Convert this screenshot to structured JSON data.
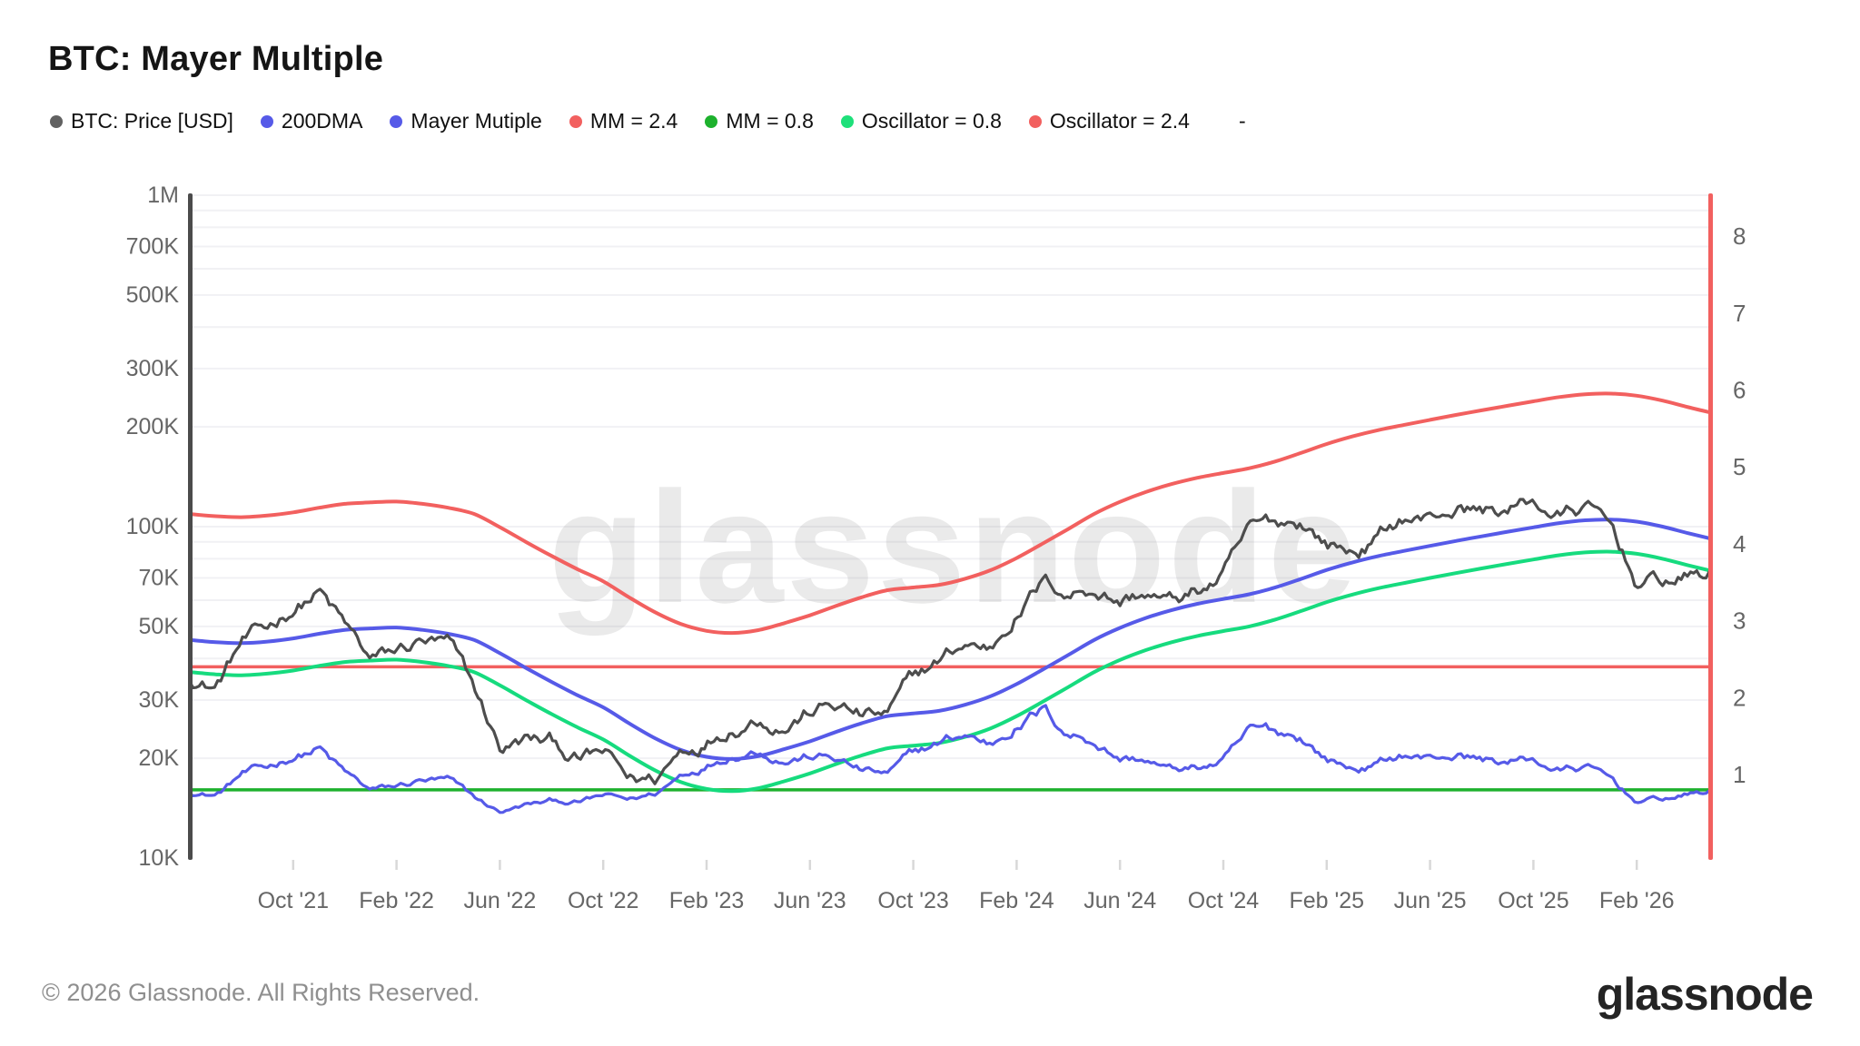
{
  "title": "BTC: Mayer Multiple",
  "watermark": "glassnode",
  "footer": {
    "copyright": "© 2026 Glassnode. All Rights Reserved.",
    "brand": "glassnode"
  },
  "legend": [
    {
      "label": "BTC: Price [USD]",
      "color": "#616161"
    },
    {
      "label": "200DMA",
      "color": "#565AE8"
    },
    {
      "label": "Mayer Mutiple",
      "color": "#565AE8"
    },
    {
      "label": "MM = 2.4",
      "color": "#F2605F"
    },
    {
      "label": "MM = 0.8",
      "color": "#1DB12D"
    },
    {
      "label": "Oscillator = 0.8",
      "color": "#1EE07A"
    },
    {
      "label": "Oscillator = 2.4",
      "color": "#F2605F"
    },
    {
      "label": "-",
      "color": null
    }
  ],
  "chart_data": {
    "type": "line",
    "title": "BTC: Mayer Multiple",
    "x_monthly_start": "2021-06",
    "x_months_total": 60,
    "x_tick_labels": [
      "Oct '21",
      "Feb '22",
      "Jun '22",
      "Oct '22",
      "Feb '23",
      "Jun '23",
      "Oct '23",
      "Feb '24",
      "Jun '24",
      "Oct '24",
      "Feb '25",
      "Jun '25",
      "Oct '25",
      "Feb '26"
    ],
    "left_axis": {
      "scale": "log",
      "unit": "USD",
      "range_usd": [
        10000,
        1000000
      ],
      "tick_labels": [
        "1M",
        "700K",
        "500K",
        "300K",
        "200K",
        "100K",
        "70K",
        "50K",
        "30K",
        "20K",
        "10K"
      ],
      "tick_values_thousand_usd": [
        1000,
        700,
        500,
        300,
        200,
        100,
        70,
        50,
        30,
        20,
        10
      ]
    },
    "right_axis": {
      "scale": "linear",
      "unit": "Mayer Multiple",
      "tick_labels": [
        "8",
        "7",
        "6",
        "5",
        "4",
        "3",
        "2",
        "1"
      ],
      "tick_values": [
        8,
        7,
        6,
        5,
        4,
        3,
        2,
        1
      ]
    },
    "grid": {
      "horizontal_minor_log_steps": true,
      "color": "#F1F1F4"
    },
    "series": [
      {
        "name": "BTC: Price [USD]",
        "axis": "price",
        "style": "jagged",
        "color": "#4D4D4D",
        "values_thousand_usd": [
          35.5,
          33.5,
          45,
          47,
          57,
          64.5,
          49,
          38,
          40,
          44,
          42,
          30,
          20.5,
          22,
          21.5,
          19.5,
          20,
          16.5,
          16.8,
          21,
          23.5,
          27,
          29,
          27.5,
          29.5,
          29.8,
          27,
          26.5,
          33,
          37.5,
          43,
          42.5,
          57,
          69,
          64,
          68,
          62,
          65,
          59,
          63,
          70,
          92,
          96,
          102,
          89,
          84,
          93,
          107,
          105,
          115,
          112,
          113,
          118,
          108,
          113,
          96,
          67,
          67.5,
          70,
          71
        ]
      },
      {
        "name": "200DMA",
        "axis": "price",
        "style": "smooth",
        "color": "#565AE8",
        "values_thousand_usd": [
          45.5,
          44.8,
          44.5,
          45,
          46,
          47.5,
          48.8,
          49.3,
          49.6,
          48.8,
          47.5,
          45.5,
          41.5,
          37.5,
          34,
          31,
          28.5,
          25.5,
          23,
          21.2,
          20.2,
          19.9,
          20.3,
          21.3,
          22.5,
          24,
          25.5,
          26.8,
          27.3,
          27.8,
          29,
          30.8,
          33.5,
          37,
          41,
          45.5,
          49.5,
          53,
          56,
          58.5,
          60.5,
          62.5,
          65.5,
          69.5,
          74,
          78,
          81.5,
          84.5,
          87.5,
          90.5,
          93.5,
          96.5,
          99.5,
          102.5,
          104.5,
          105,
          103.5,
          100,
          95.5,
          91.5
        ]
      },
      {
        "name": "Oscillator = 2.4",
        "axis": "price",
        "style": "smooth",
        "color": "#F2605F",
        "derived_from": "200DMA",
        "multiplier": 2.4
      },
      {
        "name": "Oscillator = 0.8",
        "axis": "price",
        "style": "smooth",
        "color": "#16DB7E",
        "derived_from": "200DMA",
        "multiplier": 0.8
      },
      {
        "name": "Mayer Mutiple",
        "axis": "mayer",
        "style": "jagged",
        "color": "#565AE8",
        "derived_from": "BTC: Price [USD] / 200DMA"
      },
      {
        "name": "MM = 2.4",
        "axis": "mayer",
        "style": "threshold",
        "color": "#F2605F",
        "value": 2.4
      },
      {
        "name": "MM = 0.8",
        "axis": "mayer",
        "style": "threshold",
        "color": "#1DB12D",
        "value": 0.8
      }
    ]
  }
}
